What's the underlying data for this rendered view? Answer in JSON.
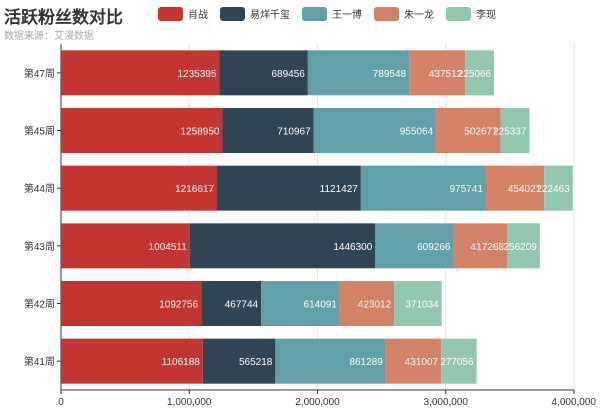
{
  "chart_data": {
    "type": "bar",
    "orientation": "horizontal",
    "stacked": true,
    "title": "活跃粉丝数对比",
    "subtitle": "数据来源：艾漫数据",
    "categories": [
      "第41周",
      "第42周",
      "第43周",
      "第44周",
      "第45周",
      "第47周"
    ],
    "series": [
      {
        "name": "肖战",
        "color": "#c23531",
        "values": [
          1106188,
          1092756,
          1004511,
          1216617,
          1258950,
          1235395
        ]
      },
      {
        "name": "易烊千玺",
        "color": "#2f4554",
        "values": [
          565218,
          467744,
          1446300,
          1121427,
          710967,
          689456
        ]
      },
      {
        "name": "王一博",
        "color": "#61a0a8",
        "values": [
          861289,
          614091,
          609266,
          975741,
          955064,
          789548
        ]
      },
      {
        "name": "朱一龙",
        "color": "#d48265",
        "values": [
          431007,
          423012,
          417268,
          454021,
          502677,
          437512
        ]
      },
      {
        "name": "李现",
        "color": "#91c7ae",
        "values": [
          277056,
          371034,
          256209,
          222463,
          225337,
          225066
        ]
      }
    ],
    "xlim": [
      0,
      4000000
    ],
    "x_ticks": [
      0,
      1000000,
      2000000,
      3000000,
      4000000
    ],
    "x_tick_labels": [
      "0",
      "1,000,000",
      "2,000,000",
      "3,000,000",
      "4,000,000"
    ],
    "grid": true,
    "legend_position": "top"
  }
}
